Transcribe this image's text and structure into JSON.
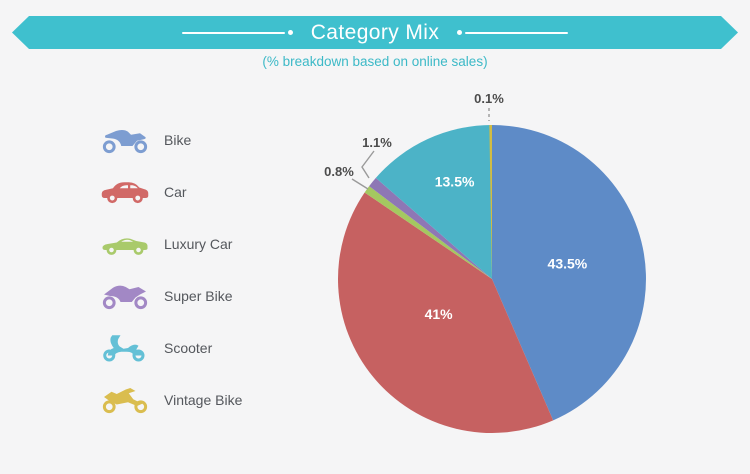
{
  "page": {
    "background": "#f5f5f6"
  },
  "header": {
    "title": "Category Mix",
    "subtitle": "(% breakdown based on online sales)",
    "ribbon_color": "#3fc0ce",
    "subtitle_color": "#3cb9c7"
  },
  "legend": {
    "position": "left",
    "items": [
      {
        "label": "Bike",
        "icon": "motorcycle-icon",
        "color": "#7d9dd1"
      },
      {
        "label": "Car",
        "icon": "car-icon",
        "color": "#d16967"
      },
      {
        "label": "Luxury Car",
        "icon": "sports-car-icon",
        "color": "#a9ca6b"
      },
      {
        "label": "Super Bike",
        "icon": "superbike-icon",
        "color": "#a288c5"
      },
      {
        "label": "Scooter",
        "icon": "scooter-icon",
        "color": "#64c0d6"
      },
      {
        "label": "Vintage Bike",
        "icon": "vintage-bike-icon",
        "color": "#dabd4f"
      }
    ]
  },
  "chart_data": {
    "type": "pie",
    "title": "Category Mix",
    "subtitle": "(% breakdown based on online sales)",
    "unit": "%",
    "start_angle_deg": -90,
    "direction": "clockwise",
    "legend_position": "left",
    "total": 100,
    "series": [
      {
        "name": "Bike",
        "value": 43.5,
        "display": "43.5%",
        "color": "#5e8bc7",
        "label_placement": "inside"
      },
      {
        "name": "Car",
        "value": 41,
        "display": "41%",
        "color": "#c66161",
        "label_placement": "inside"
      },
      {
        "name": "Luxury Car",
        "value": 0.8,
        "display": "0.8%",
        "color": "#a4c860",
        "label_placement": "outside"
      },
      {
        "name": "Super Bike",
        "value": 1.1,
        "display": "1.1%",
        "color": "#8e77b5",
        "label_placement": "outside"
      },
      {
        "name": "Scooter",
        "value": 13.5,
        "display": "13.5%",
        "color": "#4cb3c7",
        "label_placement": "inside"
      },
      {
        "name": "Vintage Bike",
        "value": 0.1,
        "display": "0.1%",
        "color": "#d2bc43",
        "label_placement": "outside"
      }
    ]
  }
}
